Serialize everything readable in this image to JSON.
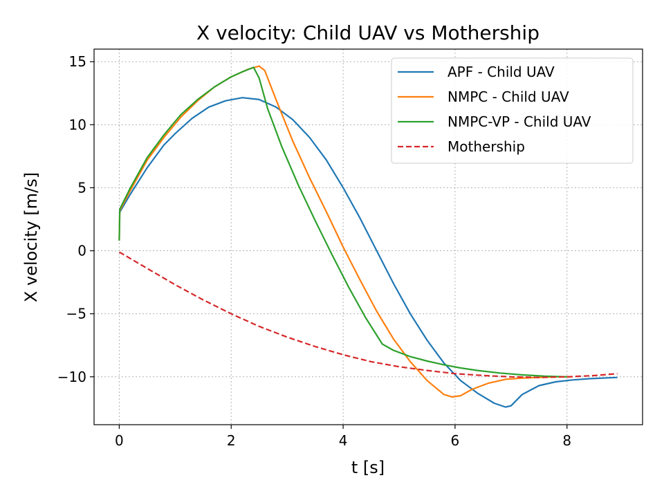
{
  "chart_data": {
    "type": "line",
    "title": "X velocity: Child UAV vs Mothership",
    "xlabel": "t [s]",
    "ylabel": "X velocity [m/s]",
    "xlim": [
      -0.45,
      9.35
    ],
    "ylim": [
      -13.8,
      16.0
    ],
    "xticks": [
      0,
      2,
      4,
      6,
      8
    ],
    "xtick_labels": [
      "0",
      "2",
      "4",
      "6",
      "8"
    ],
    "yticks": [
      -10,
      -5,
      0,
      5,
      10,
      15
    ],
    "ytick_labels": [
      "−10",
      "−5",
      "0",
      "5",
      "10",
      "15"
    ],
    "grid": true,
    "legend_position": "top-right",
    "series": [
      {
        "name": "APF - Child UAV",
        "color": "#1f77b4",
        "dashed": false,
        "x": [
          0,
          0.2,
          0.5,
          0.8,
          1.0,
          1.3,
          1.6,
          1.9,
          2.2,
          2.5,
          2.8,
          3.1,
          3.4,
          3.7,
          4.0,
          4.3,
          4.6,
          4.9,
          5.2,
          5.5,
          5.8,
          6.1,
          6.4,
          6.7,
          6.9,
          7.0,
          7.2,
          7.5,
          7.8,
          8.1,
          8.4,
          8.9
        ],
        "y": [
          3.0,
          4.5,
          6.6,
          8.4,
          9.3,
          10.5,
          11.4,
          11.9,
          12.15,
          12.0,
          11.4,
          10.4,
          9.0,
          7.2,
          5.0,
          2.6,
          0.0,
          -2.6,
          -5.0,
          -7.1,
          -8.9,
          -10.3,
          -11.3,
          -12.1,
          -12.4,
          -12.3,
          -11.4,
          -10.7,
          -10.4,
          -10.25,
          -10.15,
          -10.05
        ]
      },
      {
        "name": "NMPC - Child UAV",
        "color": "#ff7f0e",
        "dashed": false,
        "x": [
          0,
          0.01,
          0.2,
          0.5,
          0.8,
          1.1,
          1.4,
          1.7,
          2.0,
          2.3,
          2.5,
          2.6,
          2.8,
          3.1,
          3.4,
          3.7,
          4.0,
          4.3,
          4.6,
          4.9,
          5.2,
          5.5,
          5.8,
          5.95,
          6.1,
          6.3,
          6.6,
          6.9,
          7.2,
          7.5,
          7.8,
          8.1
        ],
        "y": [
          0.8,
          3.2,
          4.8,
          7.2,
          9.0,
          10.6,
          11.9,
          13.0,
          13.8,
          14.4,
          14.65,
          14.3,
          12.0,
          8.7,
          5.8,
          3.1,
          0.3,
          -2.3,
          -4.8,
          -7.0,
          -8.8,
          -10.3,
          -11.4,
          -11.6,
          -11.5,
          -11.0,
          -10.5,
          -10.2,
          -10.1,
          -10.05,
          -10.0,
          -10.0
        ]
      },
      {
        "name": "NMPC-VP - Child UAV",
        "color": "#2ca02c",
        "dashed": false,
        "x": [
          0,
          0.01,
          0.2,
          0.5,
          0.8,
          1.1,
          1.4,
          1.7,
          2.0,
          2.2,
          2.4,
          2.5,
          2.65,
          2.9,
          3.2,
          3.5,
          3.8,
          4.1,
          4.4,
          4.7,
          4.9,
          5.2,
          5.5,
          5.8,
          6.1,
          6.4,
          6.8,
          7.2,
          7.6,
          8.0
        ],
        "y": [
          0.8,
          3.3,
          5.0,
          7.4,
          9.2,
          10.8,
          12.0,
          13.0,
          13.8,
          14.2,
          14.55,
          13.7,
          11.3,
          8.3,
          5.2,
          2.4,
          -0.3,
          -2.9,
          -5.3,
          -7.4,
          -7.9,
          -8.4,
          -8.75,
          -9.05,
          -9.3,
          -9.5,
          -9.7,
          -9.85,
          -9.95,
          -10.0
        ]
      },
      {
        "name": "Mothership",
        "color": "#d62728",
        "dashed": true,
        "x": [
          0,
          0.5,
          1.0,
          1.5,
          2.0,
          2.5,
          3.0,
          3.5,
          4.0,
          4.5,
          5.0,
          5.5,
          6.0,
          6.5,
          7.0,
          7.5,
          8.0,
          8.5,
          8.9
        ],
        "y": [
          -0.1,
          -1.4,
          -2.7,
          -3.9,
          -5.0,
          -6.0,
          -6.85,
          -7.6,
          -8.25,
          -8.8,
          -9.2,
          -9.5,
          -9.75,
          -9.9,
          -10.0,
          -10.05,
          -10.0,
          -9.9,
          -9.75
        ]
      }
    ]
  }
}
